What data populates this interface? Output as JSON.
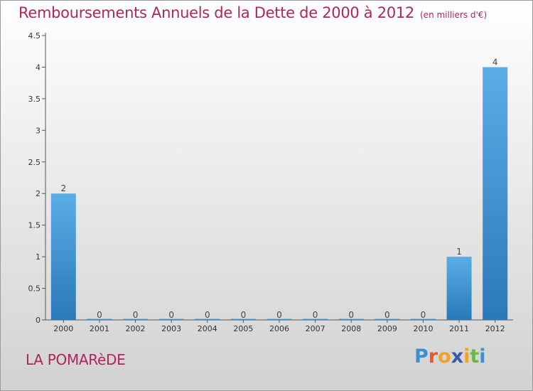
{
  "header": {
    "title": "Remboursements Annuels de la Dette de 2000 à 2012",
    "unit": "(en milliers d'€)"
  },
  "footer": {
    "commune": "LA POMARèDE",
    "logo": {
      "p": "P",
      "r": "r",
      "o": "o",
      "x": "x",
      "i1": "i",
      "t": "t",
      "i2": "i"
    }
  },
  "colors": {
    "title": "#b3245a",
    "bar_top": "#5aaee6",
    "bar_bottom": "#2a78b8"
  },
  "chart_data": {
    "type": "bar",
    "title": "Remboursements Annuels de la Dette de 2000 à 2012",
    "xlabel": "",
    "ylabel": "",
    "categories": [
      "2000",
      "2001",
      "2002",
      "2003",
      "2004",
      "2005",
      "2006",
      "2007",
      "2008",
      "2009",
      "2010",
      "2011",
      "2012"
    ],
    "values": [
      2,
      0,
      0,
      0,
      0,
      0,
      0,
      0,
      0,
      0,
      0,
      1,
      4
    ],
    "data_labels": [
      "2",
      "0",
      "0",
      "0",
      "0",
      "0",
      "0",
      "0",
      "0",
      "0",
      "0",
      "1",
      "4"
    ],
    "ylim": [
      0,
      4.5
    ],
    "yticks": [
      0,
      0.5,
      1,
      1.5,
      2,
      2.5,
      3,
      3.5,
      4,
      4.5
    ],
    "ytick_labels": [
      "0",
      "0.5",
      "1",
      "1.5",
      "2",
      "2.5",
      "3",
      "3.5",
      "4",
      "4.5"
    ],
    "grid": false,
    "legend": "none"
  }
}
